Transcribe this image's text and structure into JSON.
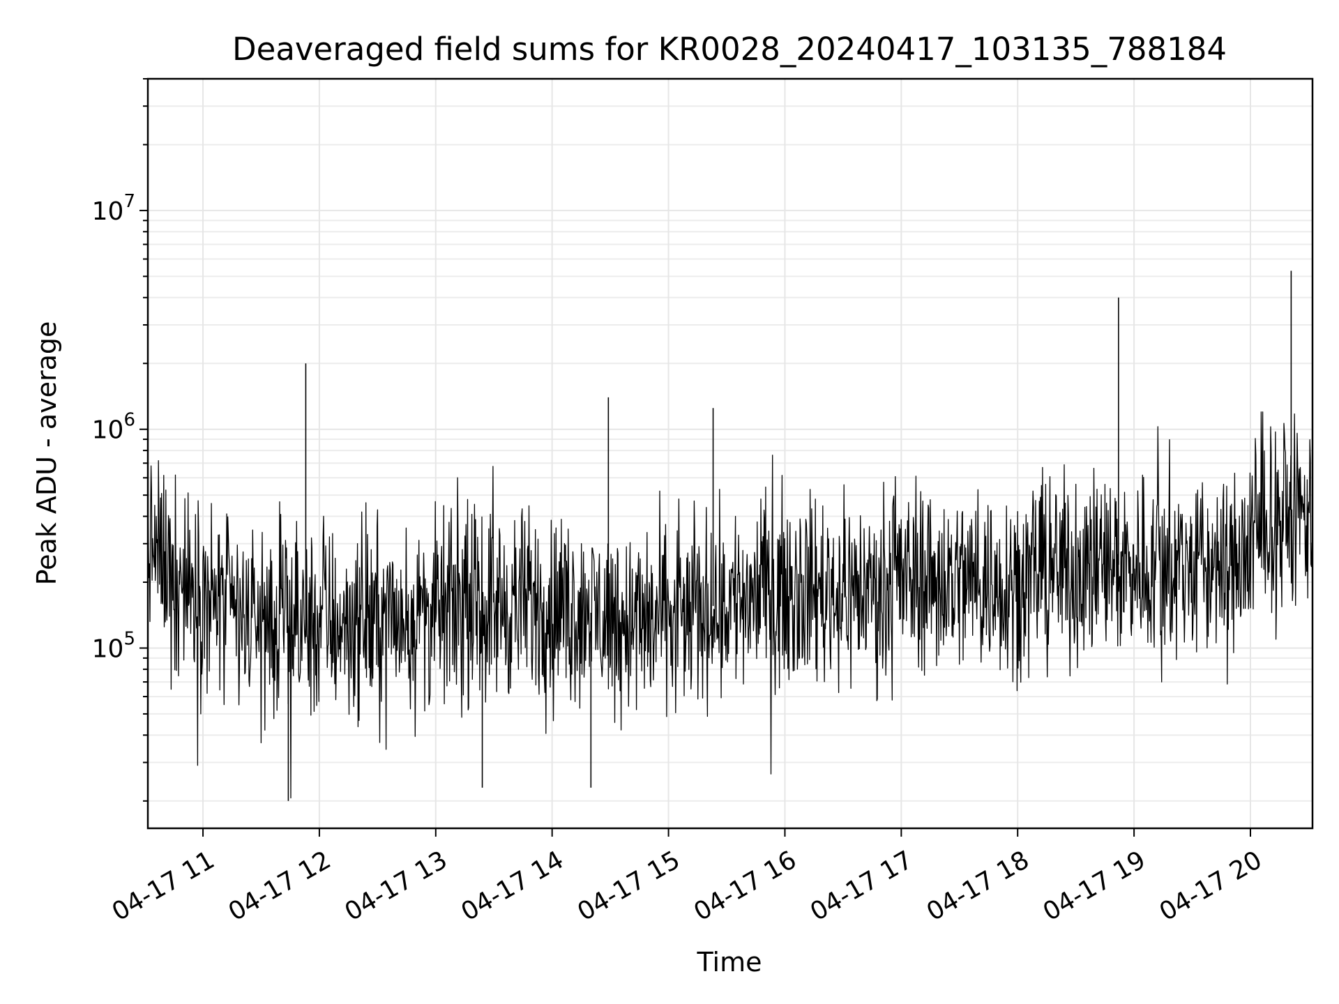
{
  "chart_data": {
    "type": "line",
    "title": "Deaveraged field sums for KR0028_20240417_103135_788184",
    "xlabel": "Time",
    "ylabel": "Peak ADU - average",
    "yscale": "log",
    "ylim": [
      15000,
      40000000
    ],
    "xlim": [
      "2024-04-17 10:31:35",
      "2024-04-17 20:32:00"
    ],
    "grid": true,
    "legend": "none",
    "line_color": "#000000",
    "x_tick_labels": [
      "04-17 11",
      "04-17 12",
      "04-17 13",
      "04-17 14",
      "04-17 15",
      "04-17 16",
      "04-17 17",
      "04-17 18",
      "04-17 19",
      "04-17 20"
    ],
    "x_ticks": [
      "2024-04-17 11:00",
      "2024-04-17 12:00",
      "2024-04-17 13:00",
      "2024-04-17 14:00",
      "2024-04-17 15:00",
      "2024-04-17 16:00",
      "2024-04-17 17:00",
      "2024-04-17 18:00",
      "2024-04-17 19:00",
      "2024-04-17 20:00"
    ],
    "y_ticks": [
      {
        "base": "10",
        "exp": "5",
        "value": 100000
      },
      {
        "base": "10",
        "exp": "6",
        "value": 1000000
      },
      {
        "base": "10",
        "exp": "7",
        "value": 10000000
      }
    ],
    "series": [
      {
        "x": [
          "2024-04-17 10:32",
          "2024-04-17 10:50",
          "2024-04-17 11:10",
          "2024-04-17 11:30",
          "2024-04-17 11:50",
          "2024-04-17 12:10",
          "2024-04-17 12:30",
          "2024-04-17 12:50",
          "2024-04-17 13:10",
          "2024-04-17 13:30",
          "2024-04-17 13:50",
          "2024-04-17 14:10",
          "2024-04-17 14:30",
          "2024-04-17 14:50",
          "2024-04-17 15:10",
          "2024-04-17 15:30",
          "2024-04-17 15:50",
          "2024-04-17 16:10",
          "2024-04-17 16:30",
          "2024-04-17 16:50",
          "2024-04-17 17:10",
          "2024-04-17 17:30",
          "2024-04-17 17:50",
          "2024-04-17 18:10",
          "2024-04-17 18:30",
          "2024-04-17 18:50",
          "2024-04-17 19:10",
          "2024-04-17 19:30",
          "2024-04-17 19:50",
          "2024-04-17 20:10",
          "2024-04-17 20:30"
        ],
        "y": [
          300000,
          200000,
          150000,
          130000,
          125000,
          130000,
          135000,
          140000,
          150000,
          155000,
          160000,
          150000,
          140000,
          130000,
          140000,
          165000,
          185000,
          190000,
          180000,
          190000,
          210000,
          205000,
          200000,
          225000,
          230000,
          240000,
          240000,
          235000,
          230000,
          380000,
          420000
        ]
      }
    ],
    "spikes": [
      {
        "x": "2024-04-17 11:53",
        "y": 2000000
      },
      {
        "x": "2024-04-17 14:29",
        "y": 1400000
      },
      {
        "x": "2024-04-17 15:23",
        "y": 1250000
      },
      {
        "x": "2024-04-17 18:52",
        "y": 4000000
      },
      {
        "x": "2024-04-17 20:21",
        "y": 5300000
      },
      {
        "x": "2024-04-17 11:44",
        "y": 20000
      },
      {
        "x": "2024-04-17 13:24",
        "y": 23000
      },
      {
        "x": "2024-04-17 14:20",
        "y": 23000
      }
    ]
  }
}
